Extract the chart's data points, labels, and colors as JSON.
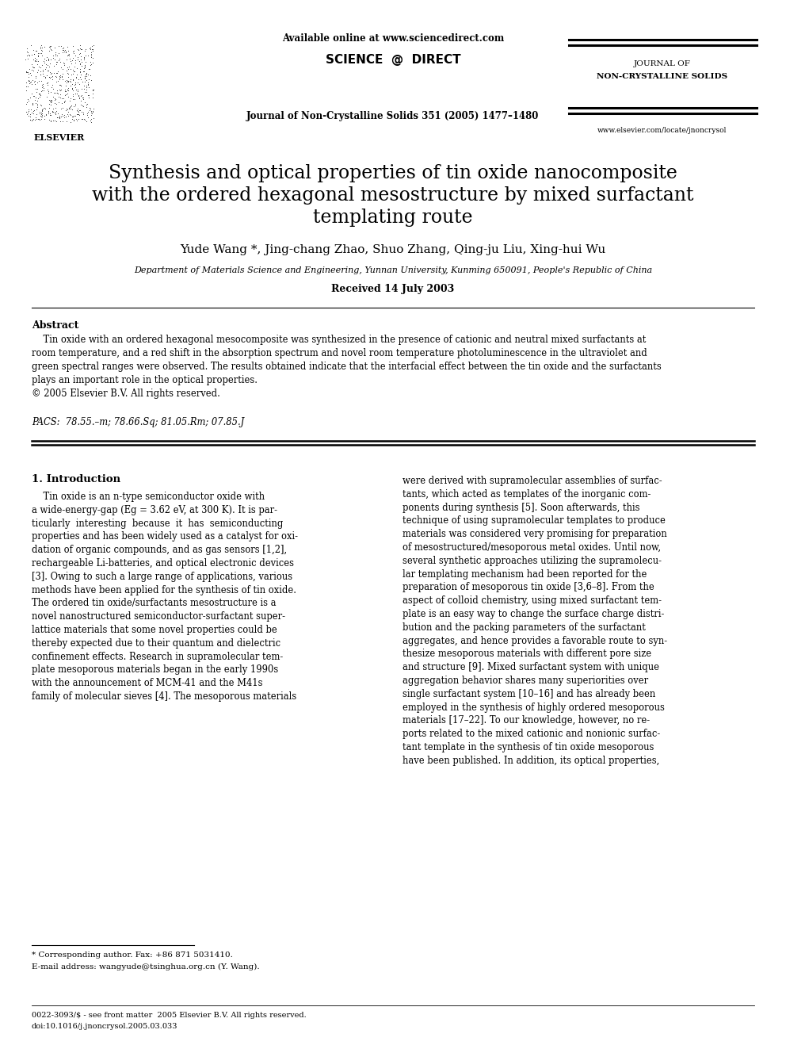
{
  "title_line1": "Synthesis and optical properties of tin oxide nanocomposite",
  "title_line2": "with the ordered hexagonal mesostructure by mixed surfactant",
  "title_line3": "templating route",
  "authors": "Yude Wang *, Jing-chang Zhao, Shuo Zhang, Qing-ju Liu, Xing-hui Wu",
  "affiliation": "Department of Materials Science and Engineering, Yunnan University, Kunming 650091, People's Republic of China",
  "received": "Received 14 July 2003",
  "journal_top": "Available online at www.sciencedirect.com",
  "journal_name": "Journal of Non-Crystalline Solids 351 (2005) 1477–1480",
  "journal_right1": "JOURNAL OF",
  "journal_right2": "NON-CRYSTALLINE SOLIDS",
  "journal_url": "www.elsevier.com/locate/jnoncrysol",
  "elsevier_label": "ELSEVIER",
  "sciencedirect": "SCIENCE  @  DIRECT",
  "abstract_title": "Abstract",
  "abstract_text": "    Tin oxide with an ordered hexagonal mesocomposite was synthesized in the presence of cationic and neutral mixed surfactants at\nroom temperature, and a red shift in the absorption spectrum and novel room temperature photoluminescence in the ultraviolet and\ngreen spectral ranges were observed. The results obtained indicate that the interfacial effect between the tin oxide and the surfactants\nplays an important role in the optical properties.\n© 2005 Elsevier B.V. All rights reserved.",
  "pacs": "PACS:  78.55.–m; 78.66.Sq; 81.05.Rm; 07.85.J",
  "section1_title": "1. Introduction",
  "intro_left": "    Tin oxide is an n-type semiconductor oxide with\na wide-energy-gap (Eg = 3.62 eV, at 300 K). It is par-\nticularly  interesting  because  it  has  semiconducting\nproperties and has been widely used as a catalyst for oxi-\ndation of organic compounds, and as gas sensors [1,2],\nrechargeable Li-batteries, and optical electronic devices\n[3]. Owing to such a large range of applications, various\nmethods have been applied for the synthesis of tin oxide.\nThe ordered tin oxide/surfactants mesostructure is a\nnovel nanostructured semiconductor-surfactant super-\nlattice materials that some novel properties could be\nthereby expected due to their quantum and dielectric\nconfinement effects. Research in supramolecular tem-\nplate mesoporous materials began in the early 1990s\nwith the announcement of MCM-41 and the M41s\nfamily of molecular sieves [4]. The mesoporous materials",
  "intro_right": "were derived with supramolecular assemblies of surfac-\ntants, which acted as templates of the inorganic com-\nponents during synthesis [5]. Soon afterwards, this\ntechnique of using supramolecular templates to produce\nmaterials was considered very promising for preparation\nof mesostructured/mesoporous metal oxides. Until now,\nseveral synthetic approaches utilizing the supramolecu-\nlar templating mechanism had been reported for the\npreparation of mesoporous tin oxide [3,6–8]. From the\naspect of colloid chemistry, using mixed surfactant tem-\nplate is an easy way to change the surface charge distri-\nbution and the packing parameters of the surfactant\naggregates, and hence provides a favorable route to syn-\nthesize mesoporous materials with different pore size\nand structure [9]. Mixed surfactant system with unique\naggregation behavior shares many superiorities over\nsingle surfactant system [10–16] and has already been\nemployed in the synthesis of highly ordered mesoporous\nmaterials [17–22]. To our knowledge, however, no re-\nports related to the mixed cationic and nonionic surfac-\ntant template in the synthesis of tin oxide mesoporous\nhave been published. In addition, its optical properties,",
  "footnote1": "* Corresponding author. Fax: +86 871 5031410.",
  "footnote2": "E-mail address: wangyude@tsinghua.org.cn (Y. Wang).",
  "footer1": "0022-3093/$ - see front matter  2005 Elsevier B.V. All rights reserved.",
  "footer2": "doi:10.1016/j.jnoncrysol.2005.03.033",
  "bg_color": "#ffffff",
  "text_color": "#000000"
}
